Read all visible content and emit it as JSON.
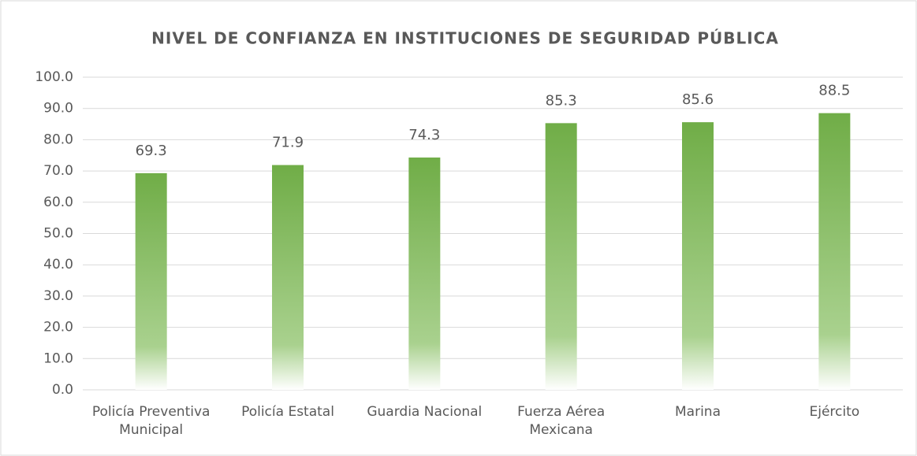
{
  "chart_data": {
    "type": "bar",
    "title": "NIVEL DE CONFIANZA EN INSTITUCIONES DE SEGURIDAD PÚBLICA",
    "categories": [
      "Policía Preventiva Municipal",
      "Policía Estatal",
      "Guardia Nacional",
      "Fuerza Aérea Mexicana",
      "Marina",
      "Ejército"
    ],
    "values": [
      69.3,
      71.9,
      74.3,
      85.3,
      85.6,
      88.5
    ],
    "color": "#70ad47",
    "ylim": [
      0,
      100
    ],
    "yticks": [
      {
        "value": 0,
        "label": "0.0"
      },
      {
        "value": 10,
        "label": "10.0"
      },
      {
        "value": 20,
        "label": "20.0"
      },
      {
        "value": 30,
        "label": "30.0"
      },
      {
        "value": 40,
        "label": "40.0"
      },
      {
        "value": 50,
        "label": "50.0"
      },
      {
        "value": 60,
        "label": "60.0"
      },
      {
        "value": 70,
        "label": "70.0"
      },
      {
        "value": 80,
        "label": "80.0"
      },
      {
        "value": 90,
        "label": "90.0"
      },
      {
        "value": 100,
        "label": "100.0"
      }
    ],
    "grid": true
  }
}
